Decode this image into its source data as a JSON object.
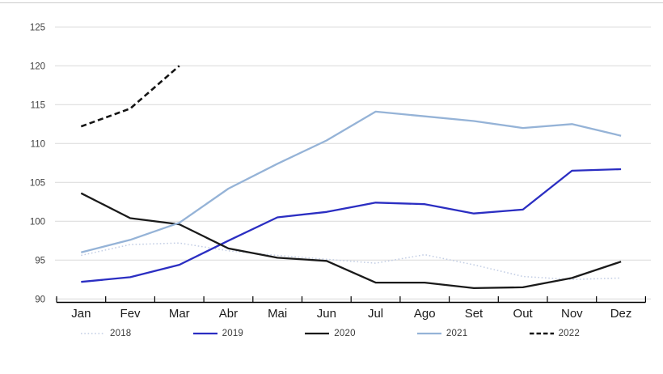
{
  "chart_data": {
    "type": "line",
    "categories": [
      "Jan",
      "Fev",
      "Mar",
      "Abr",
      "Mai",
      "Jun",
      "Jul",
      "Ago",
      "Set",
      "Out",
      "Nov",
      "Dez"
    ],
    "series": [
      {
        "name": "2018",
        "color": "#c2cde4",
        "style": "dotted",
        "values": [
          95.6,
          97.0,
          97.2,
          96.2,
          95.6,
          95.1,
          94.6,
          95.7,
          94.4,
          92.9,
          92.5,
          92.7
        ]
      },
      {
        "name": "2019",
        "color": "#2b2ec2",
        "style": "solid",
        "values": [
          92.2,
          92.8,
          94.4,
          97.5,
          100.5,
          101.2,
          102.4,
          102.2,
          101.0,
          101.5,
          106.5,
          106.7
        ]
      },
      {
        "name": "2020",
        "color": "#1a1a1a",
        "style": "solid",
        "values": [
          103.6,
          100.4,
          99.6,
          96.5,
          95.3,
          94.9,
          92.1,
          92.1,
          91.4,
          91.5,
          92.7,
          94.8
        ]
      },
      {
        "name": "2021",
        "color": "#95b3d7",
        "style": "solid",
        "values": [
          96.0,
          97.6,
          99.8,
          104.2,
          107.4,
          110.4,
          114.1,
          113.5,
          112.9,
          112.0,
          112.5,
          111.0
        ]
      },
      {
        "name": "2022",
        "color": "#141414",
        "style": "dashed",
        "values": [
          112.2,
          114.5,
          120.0,
          null,
          null,
          null,
          null,
          null,
          null,
          null,
          null,
          null
        ]
      }
    ],
    "ylim": [
      90,
      125
    ],
    "ytick_step": 5,
    "ytick_labels": [
      "90",
      "95",
      "100",
      "105",
      "110",
      "115",
      "120",
      "125"
    ],
    "grid": true,
    "legend_position": "bottom",
    "legend_entries": [
      "2018",
      "2019",
      "2020",
      "2021",
      "2022"
    ]
  },
  "colors": {
    "background": "#ffffff",
    "gridline": "#d9d9d9",
    "axis_line": "#000000",
    "y_tick_label": "#404040",
    "x_tick_label": "#1a1a1a",
    "top_border": "#cccccc"
  }
}
